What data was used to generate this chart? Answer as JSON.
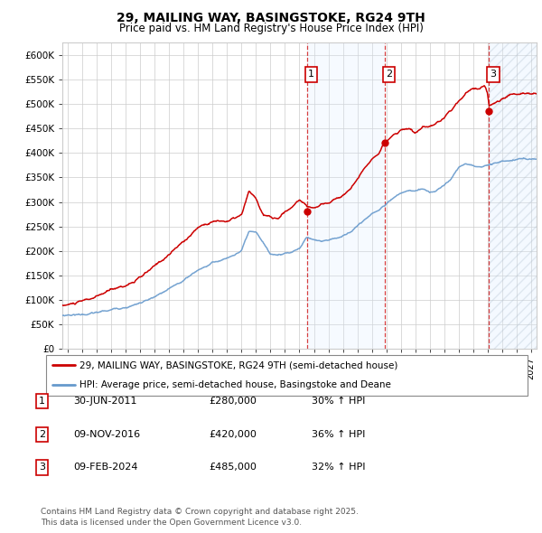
{
  "title": "29, MAILING WAY, BASINGSTOKE, RG24 9TH",
  "subtitle": "Price paid vs. HM Land Registry's House Price Index (HPI)",
  "ylim": [
    0,
    625000
  ],
  "yticks": [
    0,
    50000,
    100000,
    150000,
    200000,
    250000,
    300000,
    350000,
    400000,
    450000,
    500000,
    550000,
    600000
  ],
  "ytick_labels": [
    "£0",
    "£50K",
    "£100K",
    "£150K",
    "£200K",
    "£250K",
    "£300K",
    "£350K",
    "£400K",
    "£450K",
    "£500K",
    "£550K",
    "£600K"
  ],
  "sale_year_nums": [
    2011.5,
    2016.9,
    2024.1
  ],
  "sale_prices": [
    280000,
    420000,
    485000
  ],
  "vline_years": [
    2011.5,
    2016.9,
    2024.1
  ],
  "hpi_color": "#6699cc",
  "price_color": "#cc0000",
  "legend_price_label": "29, MAILING WAY, BASINGSTOKE, RG24 9TH (semi-detached house)",
  "legend_hpi_label": "HPI: Average price, semi-detached house, Basingstoke and Deane",
  "table_data": [
    [
      "1",
      "30-JUN-2011",
      "£280,000",
      "30% ↑ HPI"
    ],
    [
      "2",
      "09-NOV-2016",
      "£420,000",
      "36% ↑ HPI"
    ],
    [
      "3",
      "09-FEB-2024",
      "£485,000",
      "32% ↑ HPI"
    ]
  ],
  "footnote": "Contains HM Land Registry data © Crown copyright and database right 2025.\nThis data is licensed under the Open Government Licence v3.0.",
  "bg_color": "#ffffff",
  "grid_color": "#cccccc",
  "shade_color": "#ddeeff",
  "xlim_start": 1994.6,
  "xlim_end": 2027.4,
  "xtick_start": 1995,
  "xtick_end": 2027
}
